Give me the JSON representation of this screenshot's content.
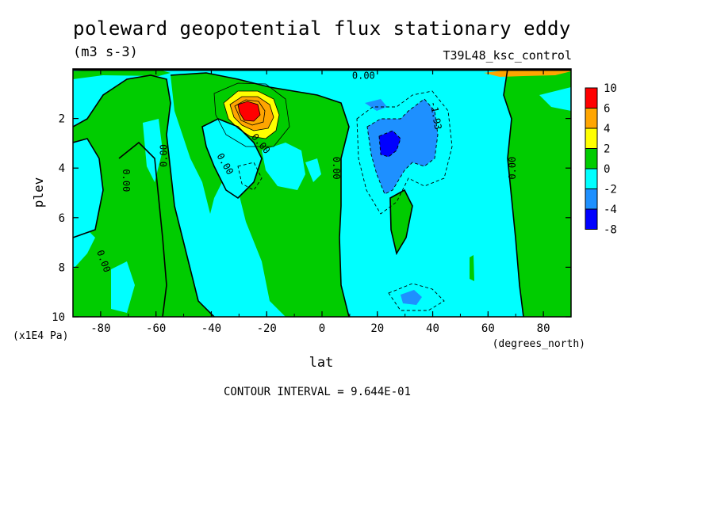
{
  "chart_data": {
    "type": "heatmap",
    "title": "poleward geopotential flux stationary eddy",
    "units": "(m3 s-3)",
    "run_label": "T39L48_ksc_control",
    "xlabel": "lat",
    "xunits": "(degrees_north)",
    "ylabel": "plev",
    "yunits": "(x1E4 Pa)",
    "x_ticks": [
      "-80",
      "-60",
      "-40",
      "-20",
      "0",
      "20",
      "40",
      "60",
      "80"
    ],
    "y_ticks": [
      "2",
      "4",
      "6",
      "8",
      "10"
    ],
    "xlim": [
      -90,
      90
    ],
    "ylim": [
      10,
      0
    ],
    "colorbar": {
      "levels": [
        "10",
        "6",
        "4",
        "2",
        "0",
        "-2",
        "-4",
        "-8"
      ],
      "colors": [
        "#ff0000",
        "#ffa500",
        "#ffff00",
        "#00cc00",
        "#00ffff",
        "#1e90ff",
        "#0000ff"
      ]
    },
    "contour_labels": [
      "0.00",
      "0.00",
      "0.00",
      "0.00",
      "0.00",
      "0.00",
      "0.00",
      "0.00",
      "-1.93"
    ],
    "contour_interval": "CONTOUR INTERVAL = 9.644E-01",
    "features": [
      {
        "desc": "positive maximum",
        "lat": -26,
        "plev": 1.8,
        "value": 8
      },
      {
        "desc": "negative minimum",
        "lat": 24,
        "plev": 3.2,
        "value": -5
      },
      {
        "desc": "negative minimum",
        "lat": 32,
        "plev": 9.3,
        "value": -3
      }
    ]
  }
}
